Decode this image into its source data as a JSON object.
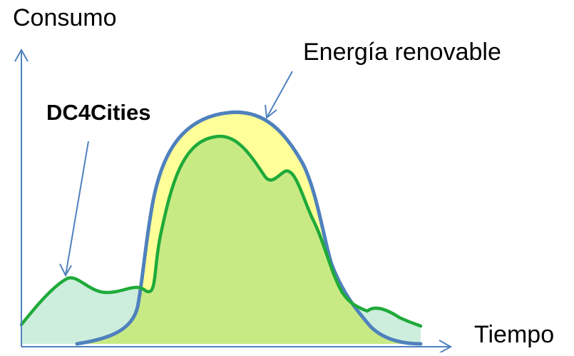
{
  "diagram": {
    "y_axis_label": "Consumo",
    "x_axis_label": "Tiempo",
    "renewable_label": "Energía renovable",
    "dc4cities_label": "DC4Cities",
    "colors": {
      "axis": "#4f81bd",
      "renewable_line": "#4f81bd",
      "renewable_fill": "#ffff99",
      "dc4cities_line": "#1faa3a",
      "dc4cities_fill_in_renewable": "#c8ea84",
      "dc4cities_fill_base": "#cdeedd"
    }
  }
}
